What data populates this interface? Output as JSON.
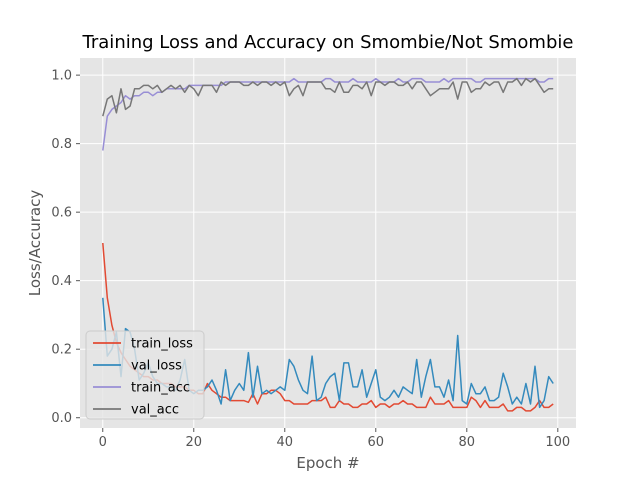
{
  "chart_data": {
    "type": "line",
    "title": "Training Loss and Accuracy on Smombie/Not Smombie",
    "xlabel": "Epoch #",
    "ylabel": "Loss/Accuracy",
    "xlim": [
      -5,
      104
    ],
    "ylim": [
      -0.03,
      1.05
    ],
    "xticks": [
      0,
      20,
      40,
      60,
      80,
      100
    ],
    "yticks": [
      0.0,
      0.2,
      0.4,
      0.6,
      0.8,
      1.0
    ],
    "grid": true,
    "legend_position": "lower-left",
    "series": [
      {
        "name": "train_loss",
        "color": "#E24A33",
        "x": [
          0,
          1,
          2,
          3,
          4,
          5,
          6,
          7,
          8,
          9,
          10,
          11,
          12,
          13,
          14,
          15,
          16,
          17,
          18,
          19,
          20,
          21,
          22,
          23,
          24,
          25,
          26,
          27,
          28,
          29,
          30,
          31,
          32,
          33,
          34,
          35,
          36,
          37,
          38,
          39,
          40,
          41,
          42,
          43,
          44,
          45,
          46,
          47,
          48,
          49,
          50,
          51,
          52,
          53,
          54,
          55,
          56,
          57,
          58,
          59,
          60,
          61,
          62,
          63,
          64,
          65,
          66,
          67,
          68,
          69,
          70,
          71,
          72,
          73,
          74,
          75,
          76,
          77,
          78,
          79,
          80,
          81,
          82,
          83,
          84,
          85,
          86,
          87,
          88,
          89,
          90,
          91,
          92,
          93,
          94,
          95,
          96,
          97,
          98,
          99
        ],
        "y": [
          0.51,
          0.35,
          0.27,
          0.22,
          0.19,
          0.17,
          0.15,
          0.14,
          0.13,
          0.12,
          0.12,
          0.11,
          0.11,
          0.1,
          0.1,
          0.1,
          0.09,
          0.09,
          0.09,
          0.08,
          0.08,
          0.07,
          0.07,
          0.1,
          0.08,
          0.07,
          0.06,
          0.06,
          0.05,
          0.05,
          0.05,
          0.05,
          0.045,
          0.07,
          0.04,
          0.07,
          0.07,
          0.08,
          0.08,
          0.07,
          0.05,
          0.05,
          0.04,
          0.04,
          0.04,
          0.04,
          0.05,
          0.05,
          0.05,
          0.06,
          0.03,
          0.03,
          0.05,
          0.04,
          0.04,
          0.03,
          0.03,
          0.04,
          0.04,
          0.05,
          0.03,
          0.04,
          0.04,
          0.03,
          0.04,
          0.04,
          0.05,
          0.04,
          0.04,
          0.03,
          0.03,
          0.03,
          0.06,
          0.04,
          0.04,
          0.04,
          0.05,
          0.03,
          0.03,
          0.03,
          0.03,
          0.06,
          0.05,
          0.03,
          0.05,
          0.03,
          0.03,
          0.03,
          0.04,
          0.02,
          0.02,
          0.03,
          0.03,
          0.02,
          0.02,
          0.03,
          0.05,
          0.03,
          0.03,
          0.04
        ]
      },
      {
        "name": "val_loss",
        "color": "#348ABD",
        "x": [
          0,
          1,
          2,
          3,
          4,
          5,
          6,
          7,
          8,
          9,
          10,
          11,
          12,
          13,
          14,
          15,
          16,
          17,
          18,
          19,
          20,
          21,
          22,
          23,
          24,
          25,
          26,
          27,
          28,
          29,
          30,
          31,
          32,
          33,
          34,
          35,
          36,
          37,
          38,
          39,
          40,
          41,
          42,
          43,
          44,
          45,
          46,
          47,
          48,
          49,
          50,
          51,
          52,
          53,
          54,
          55,
          56,
          57,
          58,
          59,
          60,
          61,
          62,
          63,
          64,
          65,
          66,
          67,
          68,
          69,
          70,
          71,
          72,
          73,
          74,
          75,
          76,
          77,
          78,
          79,
          80,
          81,
          82,
          83,
          84,
          85,
          86,
          87,
          88,
          89,
          90,
          91,
          92,
          93,
          94,
          95,
          96,
          97,
          98,
          99
        ],
        "y": [
          0.35,
          0.18,
          0.2,
          0.25,
          0.12,
          0.26,
          0.25,
          0.2,
          0.11,
          0.13,
          0.16,
          0.12,
          0.1,
          0.1,
          0.09,
          0.09,
          0.08,
          0.11,
          0.17,
          0.08,
          0.07,
          0.08,
          0.08,
          0.09,
          0.11,
          0.08,
          0.04,
          0.14,
          0.05,
          0.08,
          0.1,
          0.08,
          0.19,
          0.06,
          0.15,
          0.07,
          0.08,
          0.07,
          0.08,
          0.09,
          0.08,
          0.17,
          0.15,
          0.11,
          0.08,
          0.07,
          0.18,
          0.05,
          0.06,
          0.1,
          0.12,
          0.13,
          0.05,
          0.16,
          0.16,
          0.09,
          0.09,
          0.14,
          0.06,
          0.1,
          0.14,
          0.06,
          0.05,
          0.06,
          0.08,
          0.06,
          0.09,
          0.08,
          0.07,
          0.17,
          0.06,
          0.12,
          0.17,
          0.09,
          0.09,
          0.06,
          0.11,
          0.05,
          0.24,
          0.05,
          0.04,
          0.1,
          0.07,
          0.07,
          0.09,
          0.05,
          0.05,
          0.06,
          0.13,
          0.09,
          0.04,
          0.06,
          0.04,
          0.1,
          0.04,
          0.15,
          0.03,
          0.05,
          0.12,
          0.1
        ]
      },
      {
        "name": "train_acc",
        "color": "#988ED5",
        "x": [
          0,
          1,
          2,
          3,
          4,
          5,
          6,
          7,
          8,
          9,
          10,
          11,
          12,
          13,
          14,
          15,
          16,
          17,
          18,
          19,
          20,
          21,
          22,
          23,
          24,
          25,
          26,
          27,
          28,
          29,
          30,
          31,
          32,
          33,
          34,
          35,
          36,
          37,
          38,
          39,
          40,
          41,
          42,
          43,
          44,
          45,
          46,
          47,
          48,
          49,
          50,
          51,
          52,
          53,
          54,
          55,
          56,
          57,
          58,
          59,
          60,
          61,
          62,
          63,
          64,
          65,
          66,
          67,
          68,
          69,
          70,
          71,
          72,
          73,
          74,
          75,
          76,
          77,
          78,
          79,
          80,
          81,
          82,
          83,
          84,
          85,
          86,
          87,
          88,
          89,
          90,
          91,
          92,
          93,
          94,
          95,
          96,
          97,
          98,
          99
        ],
        "y": [
          0.78,
          0.88,
          0.9,
          0.91,
          0.92,
          0.94,
          0.93,
          0.94,
          0.94,
          0.95,
          0.95,
          0.94,
          0.95,
          0.95,
          0.96,
          0.96,
          0.96,
          0.96,
          0.96,
          0.97,
          0.97,
          0.97,
          0.97,
          0.97,
          0.97,
          0.97,
          0.97,
          0.98,
          0.98,
          0.98,
          0.98,
          0.98,
          0.98,
          0.98,
          0.98,
          0.98,
          0.98,
          0.98,
          0.98,
          0.98,
          0.98,
          0.98,
          0.99,
          0.98,
          0.98,
          0.98,
          0.98,
          0.98,
          0.98,
          0.99,
          0.99,
          0.98,
          0.98,
          0.98,
          0.98,
          0.99,
          0.98,
          0.98,
          0.98,
          0.98,
          0.99,
          0.98,
          0.98,
          0.98,
          0.98,
          0.99,
          0.98,
          0.98,
          0.99,
          0.99,
          0.99,
          0.98,
          0.98,
          0.98,
          0.98,
          0.99,
          0.98,
          0.99,
          0.99,
          0.99,
          0.99,
          0.99,
          0.98,
          0.98,
          0.99,
          0.99,
          0.99,
          0.99,
          0.99,
          0.99,
          0.99,
          0.99,
          0.99,
          0.99,
          0.99,
          0.99,
          0.98,
          0.98,
          0.99,
          0.99
        ]
      },
      {
        "name": "val_acc",
        "color": "#777777",
        "x": [
          0,
          1,
          2,
          3,
          4,
          5,
          6,
          7,
          8,
          9,
          10,
          11,
          12,
          13,
          14,
          15,
          16,
          17,
          18,
          19,
          20,
          21,
          22,
          23,
          24,
          25,
          26,
          27,
          28,
          29,
          30,
          31,
          32,
          33,
          34,
          35,
          36,
          37,
          38,
          39,
          40,
          41,
          42,
          43,
          44,
          45,
          46,
          47,
          48,
          49,
          50,
          51,
          52,
          53,
          54,
          55,
          56,
          57,
          58,
          59,
          60,
          61,
          62,
          63,
          64,
          65,
          66,
          67,
          68,
          69,
          70,
          71,
          72,
          73,
          74,
          75,
          76,
          77,
          78,
          79,
          80,
          81,
          82,
          83,
          84,
          85,
          86,
          87,
          88,
          89,
          90,
          91,
          92,
          93,
          94,
          95,
          96,
          97,
          98,
          99
        ],
        "y": [
          0.88,
          0.93,
          0.94,
          0.89,
          0.96,
          0.9,
          0.91,
          0.96,
          0.96,
          0.97,
          0.97,
          0.96,
          0.97,
          0.95,
          0.96,
          0.97,
          0.96,
          0.97,
          0.95,
          0.97,
          0.96,
          0.94,
          0.97,
          0.97,
          0.97,
          0.95,
          0.98,
          0.97,
          0.98,
          0.98,
          0.98,
          0.97,
          0.97,
          0.98,
          0.97,
          0.98,
          0.98,
          0.97,
          0.98,
          0.97,
          0.98,
          0.94,
          0.96,
          0.97,
          0.94,
          0.98,
          0.98,
          0.98,
          0.98,
          0.96,
          0.96,
          0.95,
          0.98,
          0.95,
          0.95,
          0.97,
          0.97,
          0.96,
          0.98,
          0.94,
          0.98,
          0.98,
          0.97,
          0.98,
          0.98,
          0.97,
          0.97,
          0.98,
          0.96,
          0.98,
          0.98,
          0.96,
          0.94,
          0.95,
          0.96,
          0.96,
          0.96,
          0.98,
          0.93,
          0.98,
          0.98,
          0.95,
          0.96,
          0.96,
          0.98,
          0.97,
          0.98,
          0.98,
          0.95,
          0.98,
          0.98,
          0.99,
          0.97,
          0.99,
          0.98,
          0.99,
          0.97,
          0.95,
          0.96,
          0.96
        ]
      }
    ]
  }
}
